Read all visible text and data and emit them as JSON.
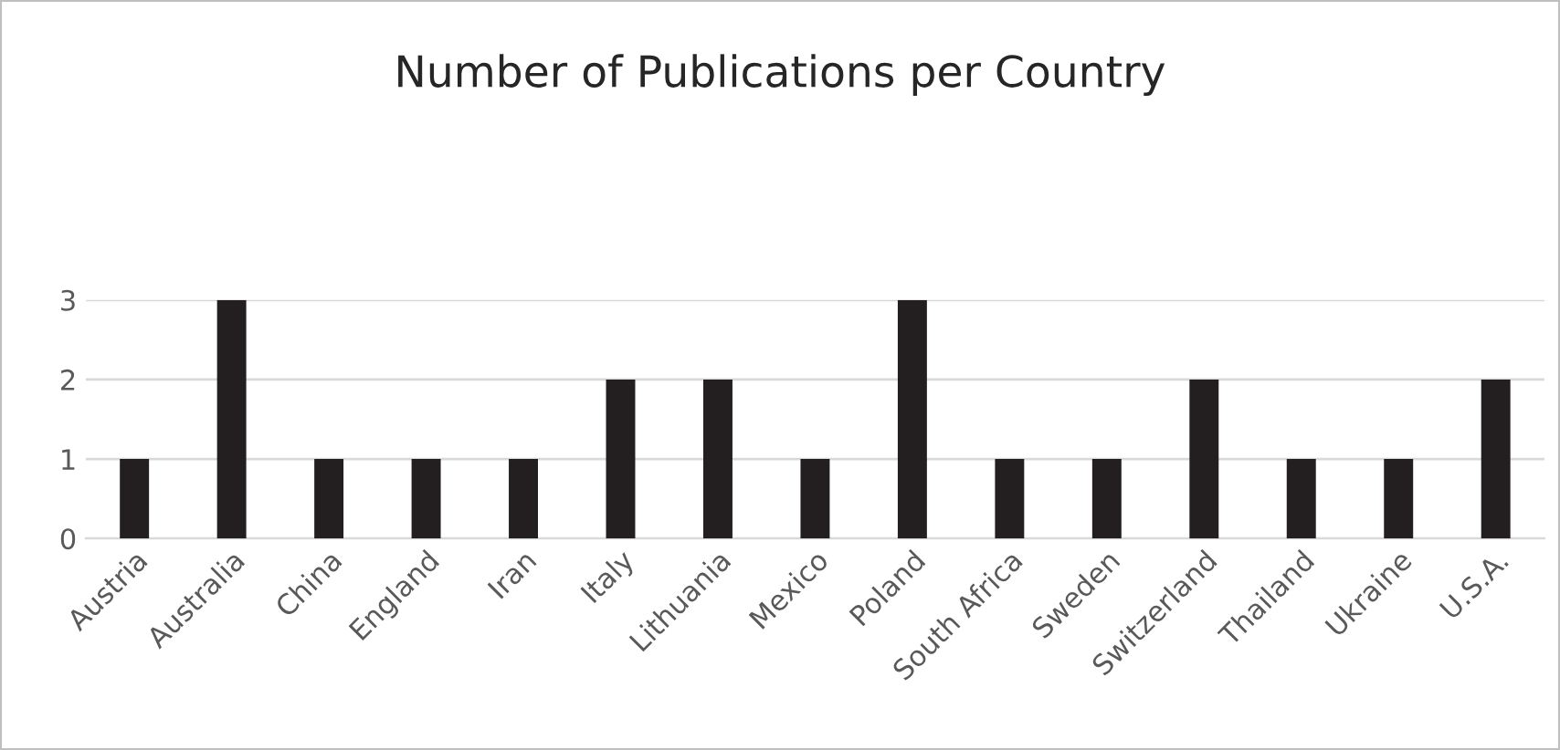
{
  "chart_data": {
    "type": "bar",
    "title": "Number of Publications per Country",
    "categories": [
      "Austria",
      "Australia",
      "China",
      "England",
      "Iran",
      "Italy",
      "Lithuania",
      "Mexico",
      "Poland",
      "South Africa",
      "Sweden",
      "Switzerland",
      "Thailand",
      "Ukraine",
      "U.S.A."
    ],
    "values": [
      1,
      3,
      1,
      1,
      1,
      2,
      2,
      1,
      3,
      1,
      1,
      2,
      1,
      1,
      2
    ],
    "color": "#231f20",
    "ylim": [
      0,
      3
    ],
    "yticks": [
      0,
      1,
      2,
      3
    ],
    "grid": "y",
    "legend": false
  }
}
